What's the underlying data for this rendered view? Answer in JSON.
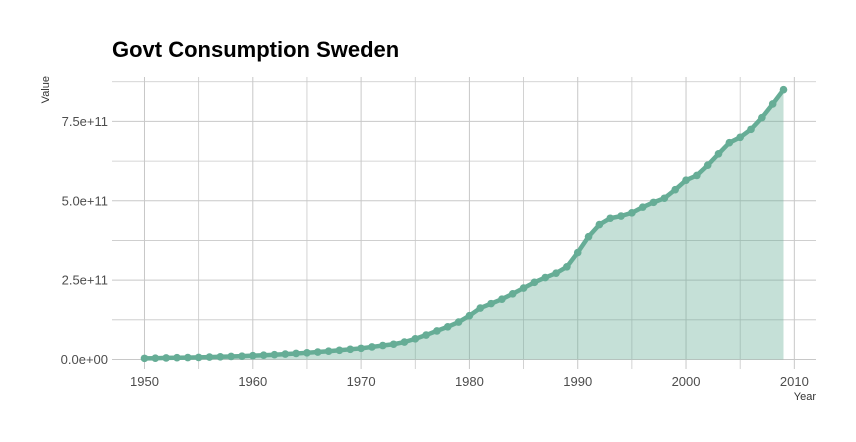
{
  "chart_data": {
    "type": "area",
    "title": "Govt Consumption Sweden",
    "xlabel": "Year",
    "ylabel": "Value",
    "xlim": [
      1947,
      2012
    ],
    "ylim": [
      -30000000000,
      890000000000
    ],
    "x_ticks": [
      1950,
      1960,
      1970,
      1980,
      1990,
      2000,
      2010
    ],
    "x_tick_labels": [
      "1950",
      "1960",
      "1970",
      "1980",
      "1990",
      "2000",
      "2010"
    ],
    "y_ticks": [
      0,
      250000000000,
      500000000000,
      750000000000
    ],
    "y_tick_labels": [
      "0.0e+00",
      "2.5e+11",
      "5.0e+11",
      "7.5e+11"
    ],
    "grid": true,
    "colors": {
      "line": "#66ad96",
      "fill": "#66ad96",
      "fill_opacity": 0.38
    },
    "series": [
      {
        "x": [
          1950,
          1951,
          1952,
          1953,
          1954,
          1955,
          1956,
          1957,
          1958,
          1959,
          1960,
          1961,
          1962,
          1963,
          1964,
          1965,
          1966,
          1967,
          1968,
          1969,
          1970,
          1971,
          1972,
          1973,
          1974,
          1975,
          1976,
          1977,
          1978,
          1979,
          1980,
          1981,
          1982,
          1983,
          1984,
          1985,
          1986,
          1987,
          1988,
          1989,
          1990,
          1991,
          1992,
          1993,
          1994,
          1995,
          1996,
          1997,
          1998,
          1999,
          2000,
          2001,
          2002,
          2003,
          2004,
          2005,
          2006,
          2007,
          2008,
          2009
        ],
        "values": [
          3500000000,
          4000000000,
          5000000000,
          5500000000,
          6000000000,
          6500000000,
          7500000000,
          8500000000,
          9500000000,
          10500000000,
          12000000000,
          13500000000,
          15000000000,
          17000000000,
          19000000000,
          21000000000,
          23500000000,
          26000000000,
          29000000000,
          32000000000,
          35000000000,
          39500000000,
          44000000000,
          48000000000,
          55000000000,
          65000000000,
          77000000000,
          90000000000,
          103000000000,
          118000000000,
          138000000000,
          162000000000,
          176000000000,
          190000000000,
          207000000000,
          225000000000,
          243000000000,
          258000000000,
          272000000000,
          292000000000,
          337000000000,
          387000000000,
          425000000000,
          445000000000,
          452000000000,
          462000000000,
          480000000000,
          495000000000,
          508000000000,
          535000000000,
          565000000000,
          580000000000,
          612000000000,
          648000000000,
          683000000000,
          700000000000,
          725000000000,
          762000000000,
          805000000000,
          850000000000
        ]
      }
    ]
  }
}
